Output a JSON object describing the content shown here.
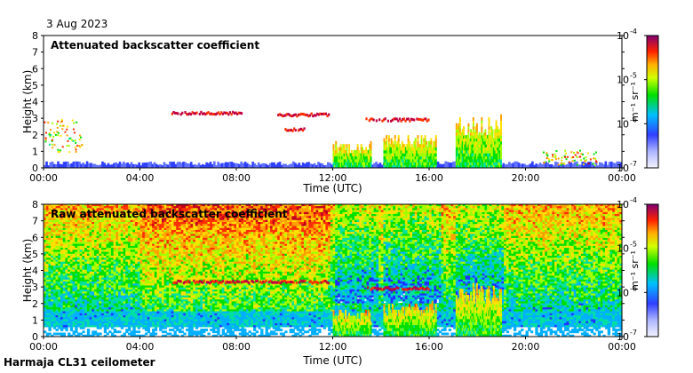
{
  "date": "3 Aug 2023",
  "site_label": "Harmaja CL31 ceilometer",
  "colorbar_ticks": [
    "10",
    "10",
    "10",
    "10"
  ],
  "colorbar_exponents": [
    "-4",
    "-5",
    "-6",
    "-7"
  ],
  "colorbar_unit": "m⁻¹ sr⁻¹",
  "chart_data": [
    {
      "type": "heatmap",
      "title": "Attenuated backscatter coefficient",
      "xlabel": "Time (UTC)",
      "ylabel": "Height (km)",
      "x_ticks": [
        "00:00",
        "04:00",
        "08:00",
        "12:00",
        "16:00",
        "20:00",
        "00:00"
      ],
      "y_ticks": [
        "0",
        "1",
        "2",
        "3",
        "4",
        "5",
        "6",
        "7",
        "8"
      ],
      "xlim_hours": [
        0,
        24
      ],
      "ylim_km": [
        0,
        8
      ],
      "colorbar": {
        "scale": "log",
        "range": [
          1e-07,
          0.0001
        ],
        "unit": "m-1 sr-1"
      },
      "features": [
        {
          "type": "aerosol_layer",
          "t_start": 0,
          "t_end": 24,
          "h_bottom": 0,
          "h_top": 0.4,
          "level": "low"
        },
        {
          "type": "cloud_fragments",
          "t_start": 0.0,
          "t_end": 1.6,
          "h_bottom": 1.0,
          "h_top": 3.0,
          "level": "medium"
        },
        {
          "type": "cloud_layer",
          "t_start": 5.3,
          "t_end": 8.2,
          "h_center": 3.3,
          "level": "high"
        },
        {
          "type": "cloud_layer",
          "t_start": 9.7,
          "t_end": 11.9,
          "h_center": 3.2,
          "level": "high"
        },
        {
          "type": "cloud_layer",
          "t_start": 13.3,
          "t_end": 16.0,
          "h_center": 2.9,
          "level": "high"
        },
        {
          "type": "cloud_layer",
          "t_start": 10.0,
          "t_end": 10.8,
          "h_center": 2.3,
          "level": "high"
        },
        {
          "type": "precipitation",
          "t_start": 12.0,
          "t_end": 13.6,
          "h_bottom": 0,
          "h_top": 1.5,
          "level": "medium"
        },
        {
          "type": "precipitation",
          "t_start": 14.1,
          "t_end": 16.3,
          "h_bottom": 0,
          "h_top": 2.0,
          "level": "medium"
        },
        {
          "type": "precipitation",
          "t_start": 17.1,
          "t_end": 19.0,
          "h_bottom": 0,
          "h_top": 3.2,
          "level": "medium"
        },
        {
          "type": "cloud_fragments",
          "t_start": 20.6,
          "t_end": 23.0,
          "h_bottom": 0.2,
          "h_top": 1.1,
          "level": "medium"
        }
      ]
    },
    {
      "type": "heatmap",
      "title": "Raw attenuated backscatter coefficient",
      "xlabel": "Time (UTC)",
      "ylabel": "Height (km)",
      "x_ticks": [
        "00:00",
        "04:00",
        "08:00",
        "12:00",
        "16:00",
        "20:00",
        "00:00"
      ],
      "y_ticks": [
        "0",
        "1",
        "2",
        "3",
        "4",
        "5",
        "6",
        "7",
        "8"
      ],
      "xlim_hours": [
        0,
        24
      ],
      "ylim_km": [
        0,
        8
      ],
      "colorbar": {
        "scale": "log",
        "range": [
          1e-07,
          0.0001
        ],
        "unit": "m-1 sr-1"
      },
      "features": [
        {
          "type": "noise_background",
          "t_start": 0,
          "t_end": 24,
          "h_bottom": 2,
          "h_top": 8,
          "level": "high_noise"
        },
        {
          "type": "cloud_layer",
          "t_start": 5.3,
          "t_end": 11.9,
          "h_center": 3.3,
          "level": "high"
        },
        {
          "type": "cloud_layer",
          "t_start": 13.3,
          "t_end": 16.0,
          "h_center": 2.9,
          "level": "high"
        },
        {
          "type": "precipitation",
          "t_start": 12.0,
          "t_end": 13.6,
          "h_bottom": 0,
          "h_top": 1.5,
          "level": "medium"
        },
        {
          "type": "precipitation",
          "t_start": 14.1,
          "t_end": 16.3,
          "h_bottom": 0,
          "h_top": 2.0,
          "level": "medium"
        },
        {
          "type": "precipitation",
          "t_start": 17.1,
          "t_end": 19.0,
          "h_bottom": 0,
          "h_top": 3.2,
          "level": "medium"
        }
      ]
    }
  ]
}
